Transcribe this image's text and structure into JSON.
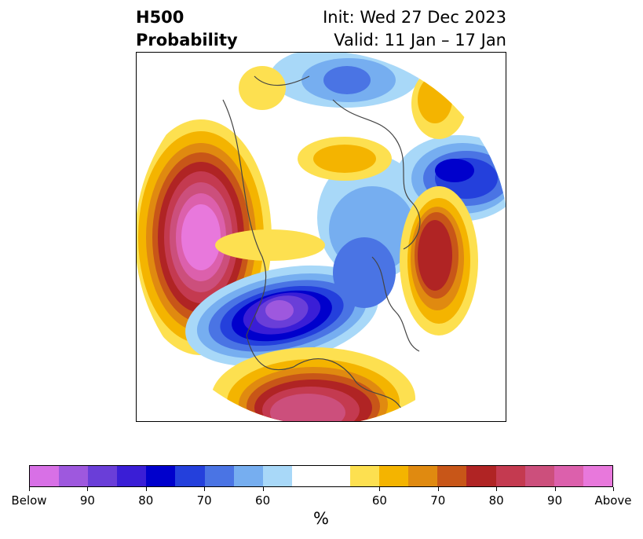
{
  "title": {
    "left_line1": "H500",
    "left_line2": "Probability",
    "right_line1": "Init: Wed 27 Dec 2023",
    "right_line2": "Valid: 11 Jan – 17 Jan"
  },
  "colorbar": {
    "colors": [
      "#d870e6",
      "#9e58de",
      "#6a3ed8",
      "#3a1ed6",
      "#0000cc",
      "#2440dc",
      "#4a74e4",
      "#76aef0",
      "#a8d8f8",
      "#ffffff",
      "#ffffff",
      "#fde050",
      "#f4b400",
      "#e08a10",
      "#c85618",
      "#b02424",
      "#c43a50",
      "#cc4f7c",
      "#dc60ac",
      "#e878dc"
    ],
    "tick_labels": [
      "Below",
      "90",
      "80",
      "70",
      "60",
      "60",
      "70",
      "80",
      "90",
      "Above"
    ],
    "units": "%"
  },
  "map": {
    "projection": "north-polar-stereographic",
    "anomalies": [
      {
        "region": "North Pacific",
        "sign": "above",
        "max_category": "Above"
      },
      {
        "region": "Northwest Canada / Alaska",
        "sign": "below",
        "max_category": "Below"
      },
      {
        "region": "Western Europe",
        "sign": "above",
        "max_category": "90"
      },
      {
        "region": "Northern Siberia",
        "sign": "below",
        "max_category": "80"
      },
      {
        "region": "Central Asia",
        "sign": "above",
        "max_category": "70"
      },
      {
        "region": "Eastern Asia",
        "sign": "above",
        "max_category": "Above"
      }
    ]
  }
}
